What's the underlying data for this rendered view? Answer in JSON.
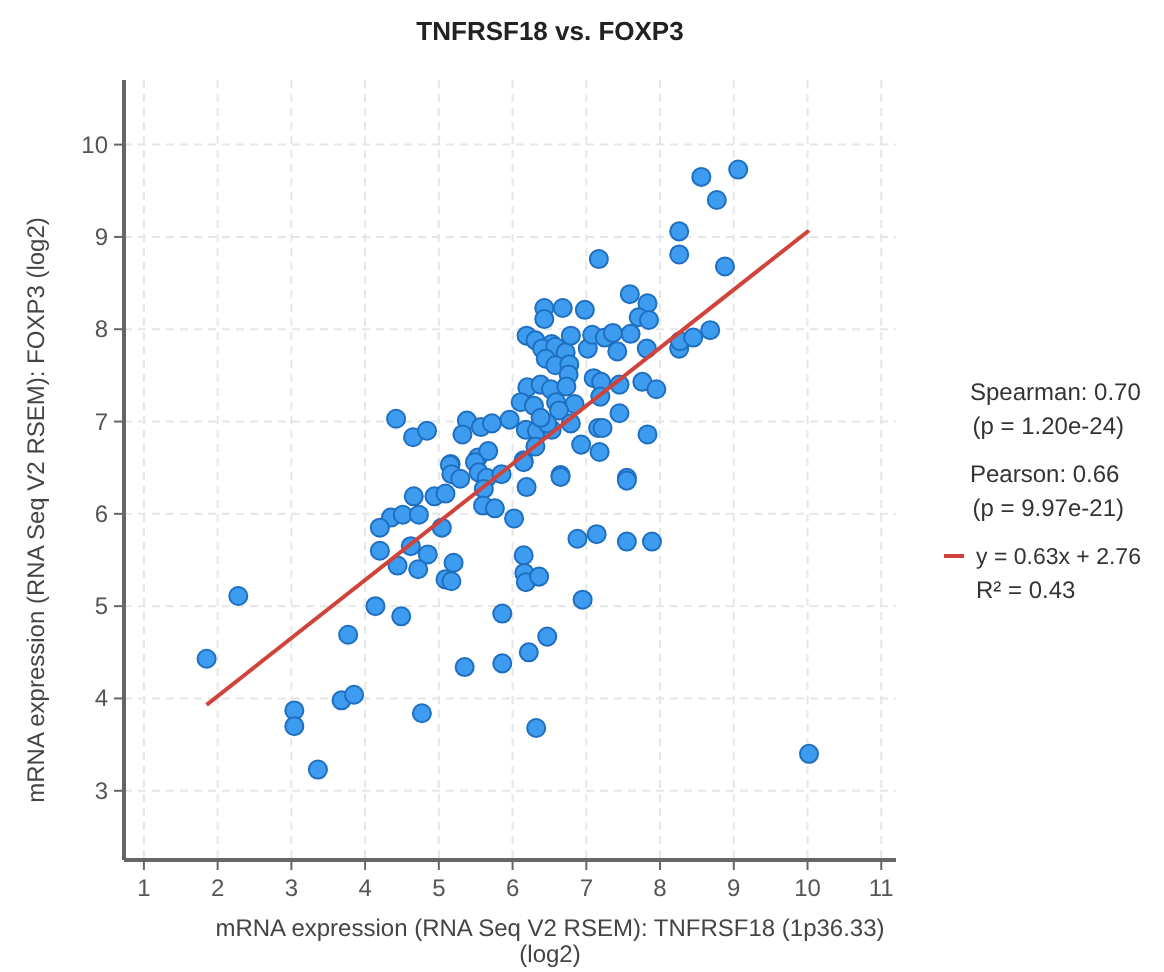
{
  "chart_data": {
    "type": "scatter",
    "title": "TNFRSF18 vs. FOXP3",
    "xlabel": "mRNA expression (RNA Seq V2 RSEM): TNFRSF18 (1p36.33)\n(log2)",
    "ylabel": "mRNA expression (RNA Seq V2 RSEM): FOXP3 (log2)",
    "annotations": [
      "Spearman: 0.70",
      "(p = 1.20e-24)",
      "Pearson: 0.66",
      "(p = 9.97e-21)",
      "R² = 0.43"
    ],
    "xlim": [
      0.73,
      11.2
    ],
    "ylim": [
      2.25,
      10.7
    ],
    "xticks": [
      1,
      2,
      3,
      4,
      5,
      6,
      7,
      8,
      9,
      10,
      11
    ],
    "yticks": [
      3,
      4,
      5,
      6,
      7,
      8,
      9,
      10
    ],
    "grid": true,
    "legend": "right",
    "marker": "circle",
    "series": [
      {
        "color": "#3d9cf0",
        "x": [
          9.06,
          8.56,
          8.77,
          8.88,
          8.26,
          8.26,
          7.17,
          7.59,
          7.83,
          7.71,
          7.85,
          7.6,
          7.82,
          8.26,
          8.27,
          8.45,
          8.68,
          6.43,
          6.68,
          6.98,
          6.43,
          6.19,
          6.31,
          6.53,
          6.4,
          6.58,
          6.72,
          6.45,
          6.58,
          6.77,
          6.79,
          7.02,
          7.08,
          7.25,
          7.36,
          7.42,
          6.76,
          7.1,
          7.2,
          7.45,
          7.76,
          7.95,
          6.2,
          6.38,
          6.52,
          6.73,
          6.11,
          6.29,
          6.59,
          6.84,
          6.63,
          7.19,
          7.45,
          4.42,
          4.65,
          4.84,
          5.38,
          5.57,
          5.72,
          5.96,
          5.32,
          6.18,
          6.33,
          6.53,
          6.47,
          6.38,
          6.79,
          7.16,
          7.22,
          7.83,
          6.93,
          7.18,
          6.31,
          6.15,
          5.16,
          5.53,
          5.67,
          6.65,
          7.55,
          5.15,
          5.17,
          5.29,
          5.49,
          5.54,
          5.65,
          5.85,
          5.61,
          5.6,
          5.76,
          6.15,
          6.19,
          6.65,
          7.55,
          6.02,
          4.66,
          4.94,
          5.09,
          4.35,
          4.51,
          4.73,
          4.2,
          5.04,
          4.2,
          4.62,
          4.85,
          4.44,
          4.72,
          5.2,
          5.09,
          5.17,
          6.15,
          6.16,
          6.18,
          6.36,
          6.88,
          7.14,
          7.55,
          7.89,
          2.28,
          4.14,
          4.49,
          6.95,
          5.86,
          3.77,
          6.47,
          6.22,
          5.35,
          5.86,
          1.85,
          3.04,
          3.04,
          3.68,
          3.85,
          4.77,
          6.32,
          3.36,
          10.02
        ],
        "values": [
          9.73,
          9.65,
          9.4,
          8.68,
          9.06,
          8.81,
          8.76,
          8.38,
          8.28,
          8.13,
          8.1,
          7.95,
          7.79,
          7.79,
          7.87,
          7.91,
          7.99,
          8.23,
          8.23,
          8.21,
          8.11,
          7.93,
          7.88,
          7.84,
          7.79,
          7.81,
          7.75,
          7.68,
          7.61,
          7.62,
          7.93,
          7.79,
          7.94,
          7.91,
          7.96,
          7.76,
          7.51,
          7.47,
          7.43,
          7.4,
          7.43,
          7.35,
          7.37,
          7.4,
          7.35,
          7.38,
          7.21,
          7.17,
          7.21,
          7.19,
          7.12,
          7.27,
          7.09,
          7.03,
          6.83,
          6.9,
          7.01,
          6.94,
          6.98,
          7.02,
          6.86,
          6.91,
          6.9,
          6.91,
          6.98,
          7.04,
          6.98,
          6.93,
          6.93,
          6.86,
          6.75,
          6.67,
          6.73,
          6.58,
          6.54,
          6.61,
          6.68,
          6.42,
          6.39,
          6.53,
          6.43,
          6.38,
          6.56,
          6.45,
          6.39,
          6.43,
          6.27,
          6.09,
          6.06,
          6.56,
          6.29,
          6.4,
          6.36,
          5.95,
          6.19,
          6.19,
          6.22,
          5.96,
          5.99,
          5.99,
          5.85,
          5.85,
          5.6,
          5.65,
          5.56,
          5.44,
          5.4,
          5.47,
          5.29,
          5.27,
          5.55,
          5.36,
          5.26,
          5.32,
          5.73,
          5.78,
          5.7,
          5.7,
          5.11,
          5.0,
          4.89,
          5.07,
          4.92,
          4.69,
          4.67,
          4.5,
          4.34,
          4.38,
          4.43,
          3.87,
          3.7,
          3.98,
          4.04,
          3.84,
          3.68,
          3.23,
          3.4
        ]
      },
      {
        "type": "line",
        "name": "y = 0.63x + 2.76",
        "color": "#d0433a",
        "marker": "none",
        "x": [
          1.85,
          10.02
        ],
        "values": [
          3.93,
          9.07
        ]
      }
    ]
  }
}
